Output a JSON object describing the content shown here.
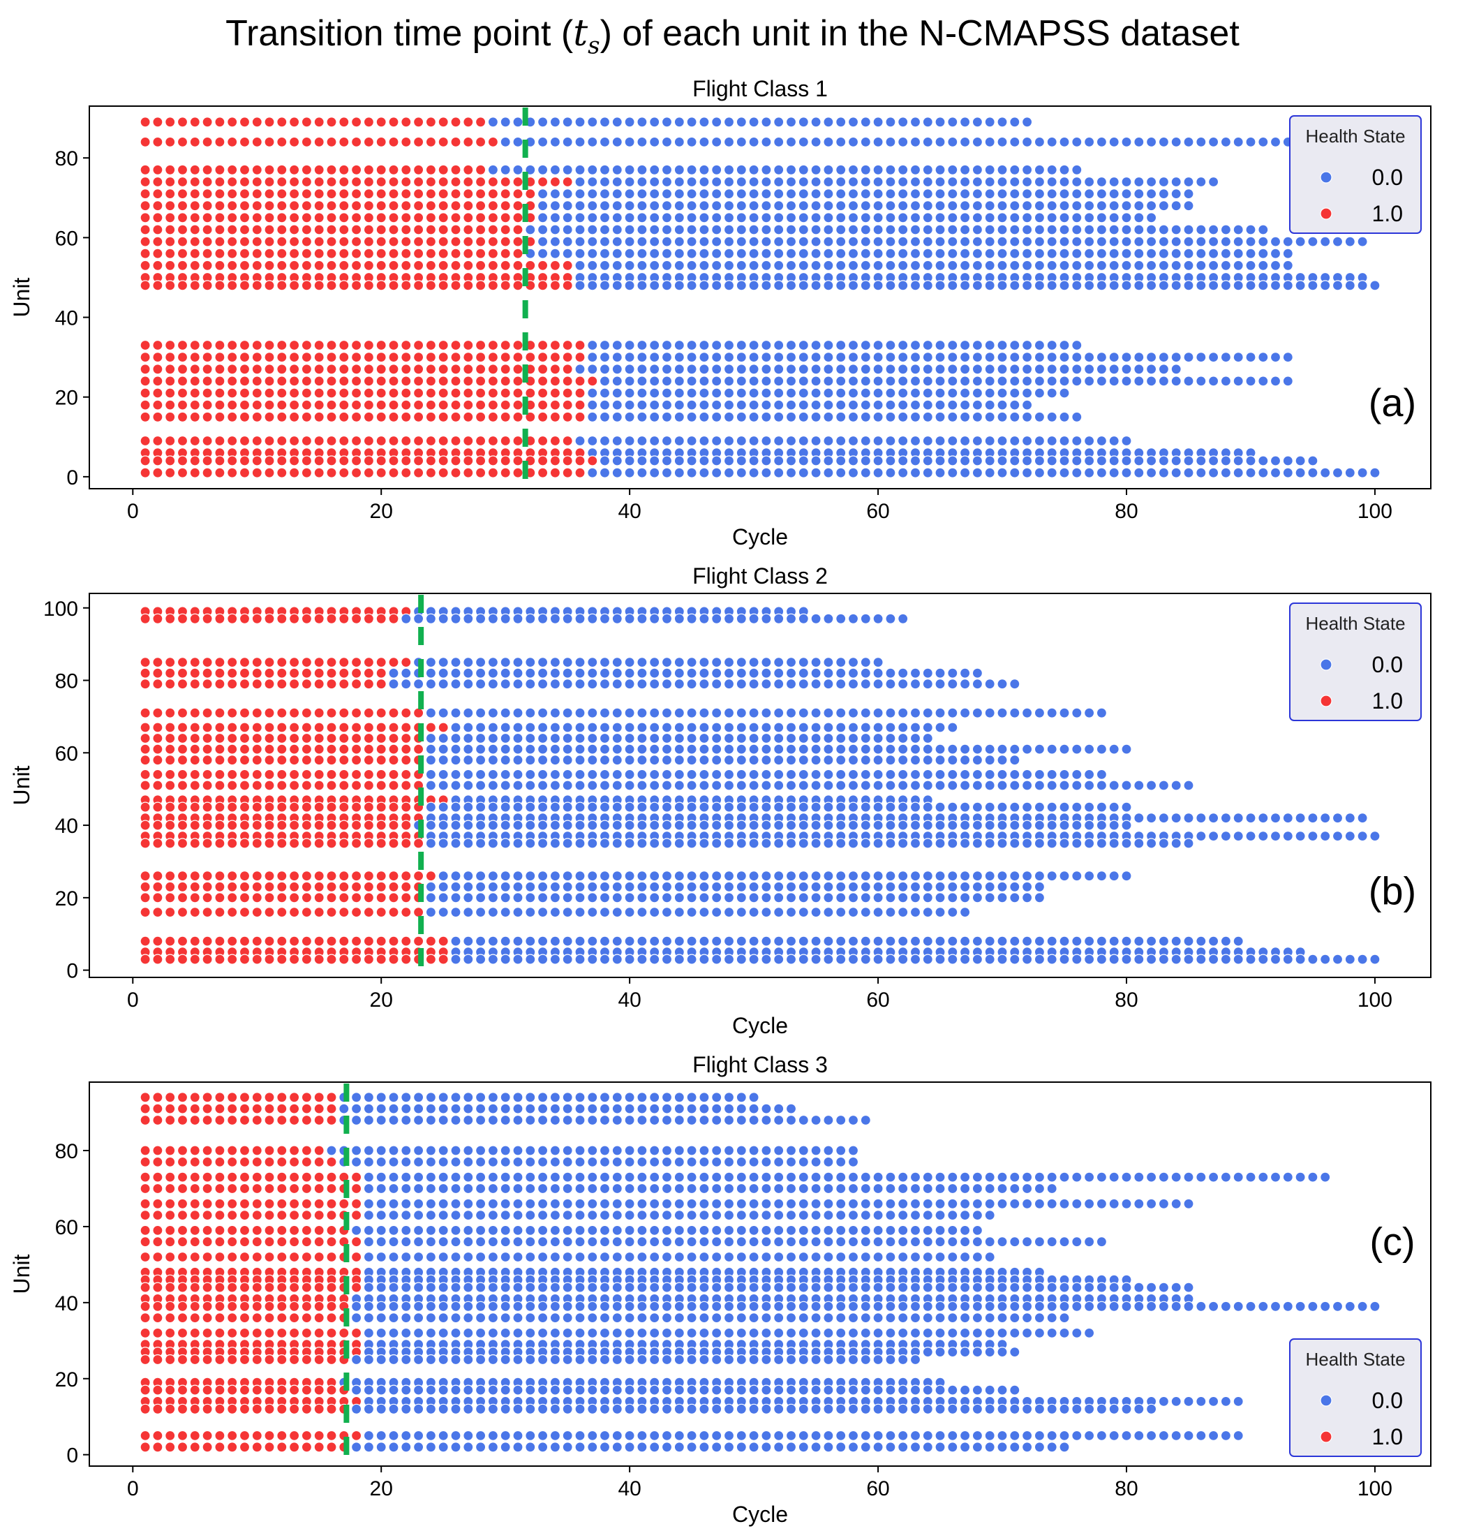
{
  "figure": {
    "title_prefix": "Transition time point (",
    "title_symbol": "t",
    "title_subscript": "s",
    "title_suffix": ") of each unit in the N-CMAPSS dataset"
  },
  "colors": {
    "healthy": "#4a76e8",
    "degraded": "#f53535",
    "threshold": "#11b04f",
    "legend_border": "#2b35d8",
    "legend_bg": "#eaeaf2"
  },
  "chart_data": [
    {
      "type": "scatter",
      "title": "Flight Class 1",
      "panel_label": "(a)",
      "xlabel": "Cycle",
      "ylabel": "Unit",
      "xlim": [
        -3.5,
        104.5
      ],
      "ylim": [
        -3,
        93
      ],
      "xticks": [
        0,
        20,
        40,
        60,
        80,
        100
      ],
      "yticks": [
        0,
        20,
        40,
        60,
        80
      ],
      "legend": {
        "title": "Health State",
        "position": "top-right",
        "entries": [
          "0.0",
          "1.0"
        ]
      },
      "threshold_cycle": 31.6,
      "series_by_unit": [
        {
          "unit": 89,
          "cycles": 72,
          "transition": 28
        },
        {
          "unit": 84,
          "cycles": 95,
          "transition": 29
        },
        {
          "unit": 77,
          "cycles": 76,
          "transition": 28
        },
        {
          "unit": 74,
          "cycles": 87,
          "transition": 35
        },
        {
          "unit": 71,
          "cycles": 85,
          "transition": 32
        },
        {
          "unit": 68,
          "cycles": 85,
          "transition": 32
        },
        {
          "unit": 65,
          "cycles": 82,
          "transition": 32
        },
        {
          "unit": 62,
          "cycles": 91,
          "transition": 31
        },
        {
          "unit": 59,
          "cycles": 99,
          "transition": 32
        },
        {
          "unit": 56,
          "cycles": 93,
          "transition": 31
        },
        {
          "unit": 53,
          "cycles": 93,
          "transition": 35
        },
        {
          "unit": 50,
          "cycles": 99,
          "transition": 35
        },
        {
          "unit": 48,
          "cycles": 100,
          "transition": 35
        },
        {
          "unit": 33,
          "cycles": 76,
          "transition": 36
        },
        {
          "unit": 30,
          "cycles": 93,
          "transition": 36
        },
        {
          "unit": 27,
          "cycles": 84,
          "transition": 35
        },
        {
          "unit": 24,
          "cycles": 93,
          "transition": 37
        },
        {
          "unit": 21,
          "cycles": 75,
          "transition": 36
        },
        {
          "unit": 18,
          "cycles": 72,
          "transition": 36
        },
        {
          "unit": 15,
          "cycles": 76,
          "transition": 36
        },
        {
          "unit": 9,
          "cycles": 80,
          "transition": 35
        },
        {
          "unit": 6,
          "cycles": 90,
          "transition": 36
        },
        {
          "unit": 4,
          "cycles": 95,
          "transition": 37
        },
        {
          "unit": 1,
          "cycles": 100,
          "transition": 36
        }
      ]
    },
    {
      "type": "scatter",
      "title": "Flight Class 2",
      "panel_label": "(b)",
      "xlabel": "Cycle",
      "ylabel": "Unit",
      "xlim": [
        -3.5,
        104.5
      ],
      "ylim": [
        -2,
        104
      ],
      "xticks": [
        0,
        20,
        40,
        60,
        80,
        100
      ],
      "yticks": [
        0,
        20,
        40,
        60,
        80,
        100
      ],
      "legend": {
        "title": "Health State",
        "position": "top-right",
        "entries": [
          "0.0",
          "1.0"
        ]
      },
      "threshold_cycle": 23.2,
      "series_by_unit": [
        {
          "unit": 99,
          "cycles": 54,
          "transition": 22
        },
        {
          "unit": 97,
          "cycles": 62,
          "transition": 21
        },
        {
          "unit": 85,
          "cycles": 60,
          "transition": 22
        },
        {
          "unit": 82,
          "cycles": 68,
          "transition": 20
        },
        {
          "unit": 79,
          "cycles": 71,
          "transition": 20
        },
        {
          "unit": 71,
          "cycles": 78,
          "transition": 23
        },
        {
          "unit": 67,
          "cycles": 66,
          "transition": 25
        },
        {
          "unit": 64,
          "cycles": 64,
          "transition": 23
        },
        {
          "unit": 61,
          "cycles": 80,
          "transition": 23
        },
        {
          "unit": 58,
          "cycles": 71,
          "transition": 23
        },
        {
          "unit": 54,
          "cycles": 78,
          "transition": 23
        },
        {
          "unit": 51,
          "cycles": 85,
          "transition": 23
        },
        {
          "unit": 47,
          "cycles": 64,
          "transition": 25
        },
        {
          "unit": 45,
          "cycles": 80,
          "transition": 23
        },
        {
          "unit": 42,
          "cycles": 99,
          "transition": 23
        },
        {
          "unit": 40,
          "cycles": 80,
          "transition": 22
        },
        {
          "unit": 37,
          "cycles": 100,
          "transition": 23
        },
        {
          "unit": 35,
          "cycles": 85,
          "transition": 23
        },
        {
          "unit": 26,
          "cycles": 80,
          "transition": 24
        },
        {
          "unit": 23,
          "cycles": 73,
          "transition": 23
        },
        {
          "unit": 20,
          "cycles": 73,
          "transition": 23
        },
        {
          "unit": 16,
          "cycles": 67,
          "transition": 23
        },
        {
          "unit": 8,
          "cycles": 89,
          "transition": 25
        },
        {
          "unit": 5,
          "cycles": 94,
          "transition": 25
        },
        {
          "unit": 3,
          "cycles": 100,
          "transition": 25
        }
      ]
    },
    {
      "type": "scatter",
      "title": "Flight Class 3",
      "panel_label": "(c)",
      "xlabel": "Cycle",
      "ylabel": "Unit",
      "xlim": [
        -3.5,
        104.5
      ],
      "ylim": [
        -3,
        98
      ],
      "xticks": [
        0,
        20,
        40,
        60,
        80,
        100
      ],
      "yticks": [
        0,
        20,
        40,
        60,
        80
      ],
      "legend": {
        "title": "Health State",
        "position": "bottom-right",
        "entries": [
          "0.0",
          "1.0"
        ]
      },
      "threshold_cycle": 17.2,
      "series_by_unit": [
        {
          "unit": 94,
          "cycles": 50,
          "transition": 16
        },
        {
          "unit": 91,
          "cycles": 53,
          "transition": 16
        },
        {
          "unit": 88,
          "cycles": 59,
          "transition": 16
        },
        {
          "unit": 80,
          "cycles": 58,
          "transition": 15
        },
        {
          "unit": 77,
          "cycles": 58,
          "transition": 16
        },
        {
          "unit": 73,
          "cycles": 96,
          "transition": 18
        },
        {
          "unit": 70,
          "cycles": 74,
          "transition": 18
        },
        {
          "unit": 66,
          "cycles": 85,
          "transition": 18
        },
        {
          "unit": 63,
          "cycles": 69,
          "transition": 18
        },
        {
          "unit": 59,
          "cycles": 68,
          "transition": 17
        },
        {
          "unit": 56,
          "cycles": 78,
          "transition": 18
        },
        {
          "unit": 52,
          "cycles": 69,
          "transition": 18
        },
        {
          "unit": 48,
          "cycles": 73,
          "transition": 18
        },
        {
          "unit": 46,
          "cycles": 80,
          "transition": 18
        },
        {
          "unit": 44,
          "cycles": 85,
          "transition": 18
        },
        {
          "unit": 41,
          "cycles": 85,
          "transition": 17
        },
        {
          "unit": 39,
          "cycles": 100,
          "transition": 17
        },
        {
          "unit": 36,
          "cycles": 75,
          "transition": 17
        },
        {
          "unit": 32,
          "cycles": 77,
          "transition": 18
        },
        {
          "unit": 29,
          "cycles": 70,
          "transition": 18
        },
        {
          "unit": 27,
          "cycles": 71,
          "transition": 18
        },
        {
          "unit": 25,
          "cycles": 63,
          "transition": 17
        },
        {
          "unit": 19,
          "cycles": 65,
          "transition": 16
        },
        {
          "unit": 17,
          "cycles": 71,
          "transition": 17
        },
        {
          "unit": 14,
          "cycles": 89,
          "transition": 18
        },
        {
          "unit": 12,
          "cycles": 82,
          "transition": 17
        },
        {
          "unit": 5,
          "cycles": 89,
          "transition": 18
        },
        {
          "unit": 2,
          "cycles": 75,
          "transition": 17
        }
      ]
    }
  ]
}
